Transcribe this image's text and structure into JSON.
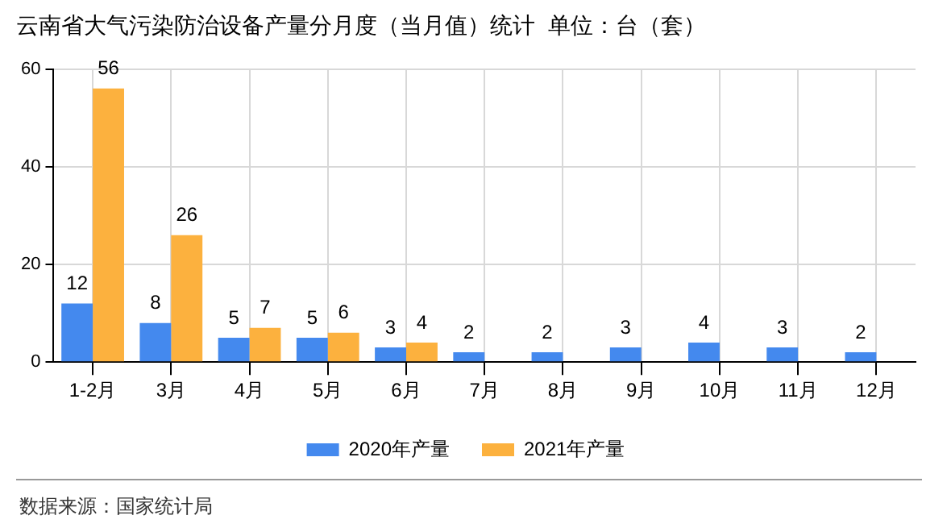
{
  "chart_data": {
    "type": "bar",
    "title": "云南省大气污染防治设备产量分月度（当月值）统计  单位：台（套）",
    "categories": [
      "1-2月",
      "3月",
      "4月",
      "5月",
      "6月",
      "7月",
      "8月",
      "9月",
      "10月",
      "11月",
      "12月"
    ],
    "series": [
      {
        "name": "2020年产量",
        "color": "#4489ee",
        "values": [
          12,
          8,
          5,
          5,
          3,
          2,
          2,
          3,
          4,
          3,
          2
        ]
      },
      {
        "name": "2021年产量",
        "color": "#fcb13e",
        "values": [
          56,
          26,
          7,
          6,
          4,
          null,
          null,
          null,
          null,
          null,
          null
        ]
      }
    ],
    "ylim": [
      0,
      60
    ],
    "yticks": [
      0,
      20,
      40,
      60
    ],
    "grid": true,
    "legend": "bottom",
    "data_labels": true,
    "annotations": [
      "数据来源：国家统计局"
    ]
  }
}
